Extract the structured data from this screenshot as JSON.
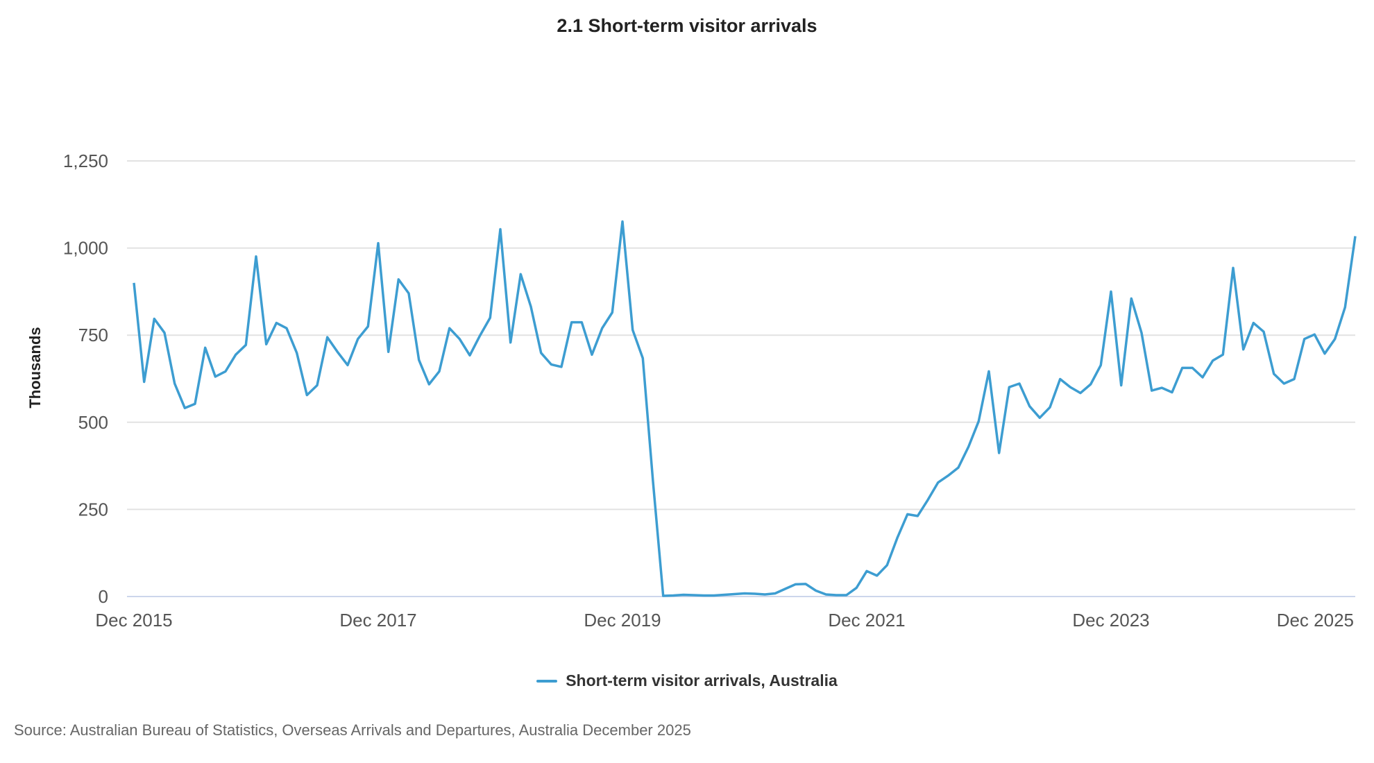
{
  "chart_data": {
    "type": "line",
    "title": "2.1 Short-term visitor arrivals",
    "ylabel": "Thousands",
    "xlabel": "",
    "ylim": [
      0,
      1250
    ],
    "yticks": [
      0,
      250,
      500,
      750,
      1000,
      1250
    ],
    "ytick_labels": [
      "0",
      "250",
      "500",
      "750",
      "1,000",
      "1,250"
    ],
    "xtick_labels": [
      "Dec 2015",
      "Dec 2017",
      "Dec 2019",
      "Dec 2021",
      "Dec 2023",
      "Dec 2025"
    ],
    "x_start": "Dec 2015",
    "x_end": "Dec 2025",
    "frequency": "monthly",
    "grid": true,
    "legend_position": "bottom",
    "series": [
      {
        "name": "Short-term visitor arrivals, Australia",
        "color": "#3d9dd1",
        "values": [
          900,
          616,
          797,
          757,
          611,
          541,
          553,
          714,
          631,
          646,
          694,
          722,
          976,
          724,
          785,
          770,
          699,
          578,
          606,
          744,
          702,
          664,
          739,
          775,
          1014,
          702,
          910,
          870,
          679,
          609,
          646,
          770,
          739,
          692,
          749,
          800,
          1054,
          729,
          925,
          832,
          699,
          666,
          659,
          787,
          787,
          694,
          770,
          815,
          1076,
          765,
          684,
          330,
          2,
          3,
          5,
          4,
          3,
          3,
          5,
          7,
          9,
          8,
          6,
          9,
          22,
          35,
          36,
          17,
          6,
          4,
          4,
          25,
          73,
          60,
          90,
          168,
          236,
          231,
          277,
          327,
          347,
          370,
          430,
          503,
          646,
          412,
          601,
          611,
          546,
          513,
          543,
          624,
          601,
          584,
          609,
          664,
          875,
          606,
          855,
          757,
          591,
          599,
          586,
          656,
          656,
          629,
          677,
          694,
          943,
          709,
          785,
          760,
          639,
          611,
          624,
          739,
          752,
          697,
          739,
          830,
          1034
        ]
      }
    ],
    "source": "Source: Australian Bureau of Statistics, Overseas Arrivals and Departures, Australia December 2025"
  }
}
